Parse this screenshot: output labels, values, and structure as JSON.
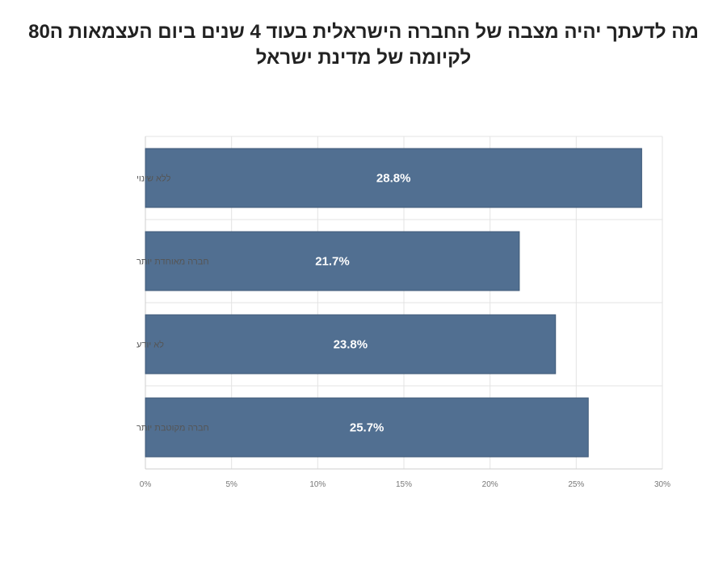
{
  "chart_data": {
    "type": "bar",
    "orientation": "horizontal",
    "title_lines": [
      "מה לדעתך יהיה מצבה של החברה הישראלית בעוד 4 שנים ביום העצמאות ה80",
      "לקיומה של מדינת ישראל"
    ],
    "categories": [
      "ללא שינוי",
      "חברה מאוחדת יותר",
      "לא יודע",
      "חברה מקוטבת יותר"
    ],
    "values": [
      28.8,
      21.7,
      23.8,
      25.7
    ],
    "data_labels": [
      "28.8%",
      "21.7%",
      "23.8%",
      "25.7%"
    ],
    "x_ticks": [
      0,
      5,
      10,
      15,
      20,
      25,
      30
    ],
    "x_tick_labels": [
      "0%",
      "5%",
      "10%",
      "15%",
      "20%",
      "25%",
      "30%"
    ],
    "xlim": [
      0,
      30
    ],
    "xlabel": "",
    "ylabel": "",
    "grid": true,
    "legend": "none",
    "bar_color": "#516f91"
  }
}
